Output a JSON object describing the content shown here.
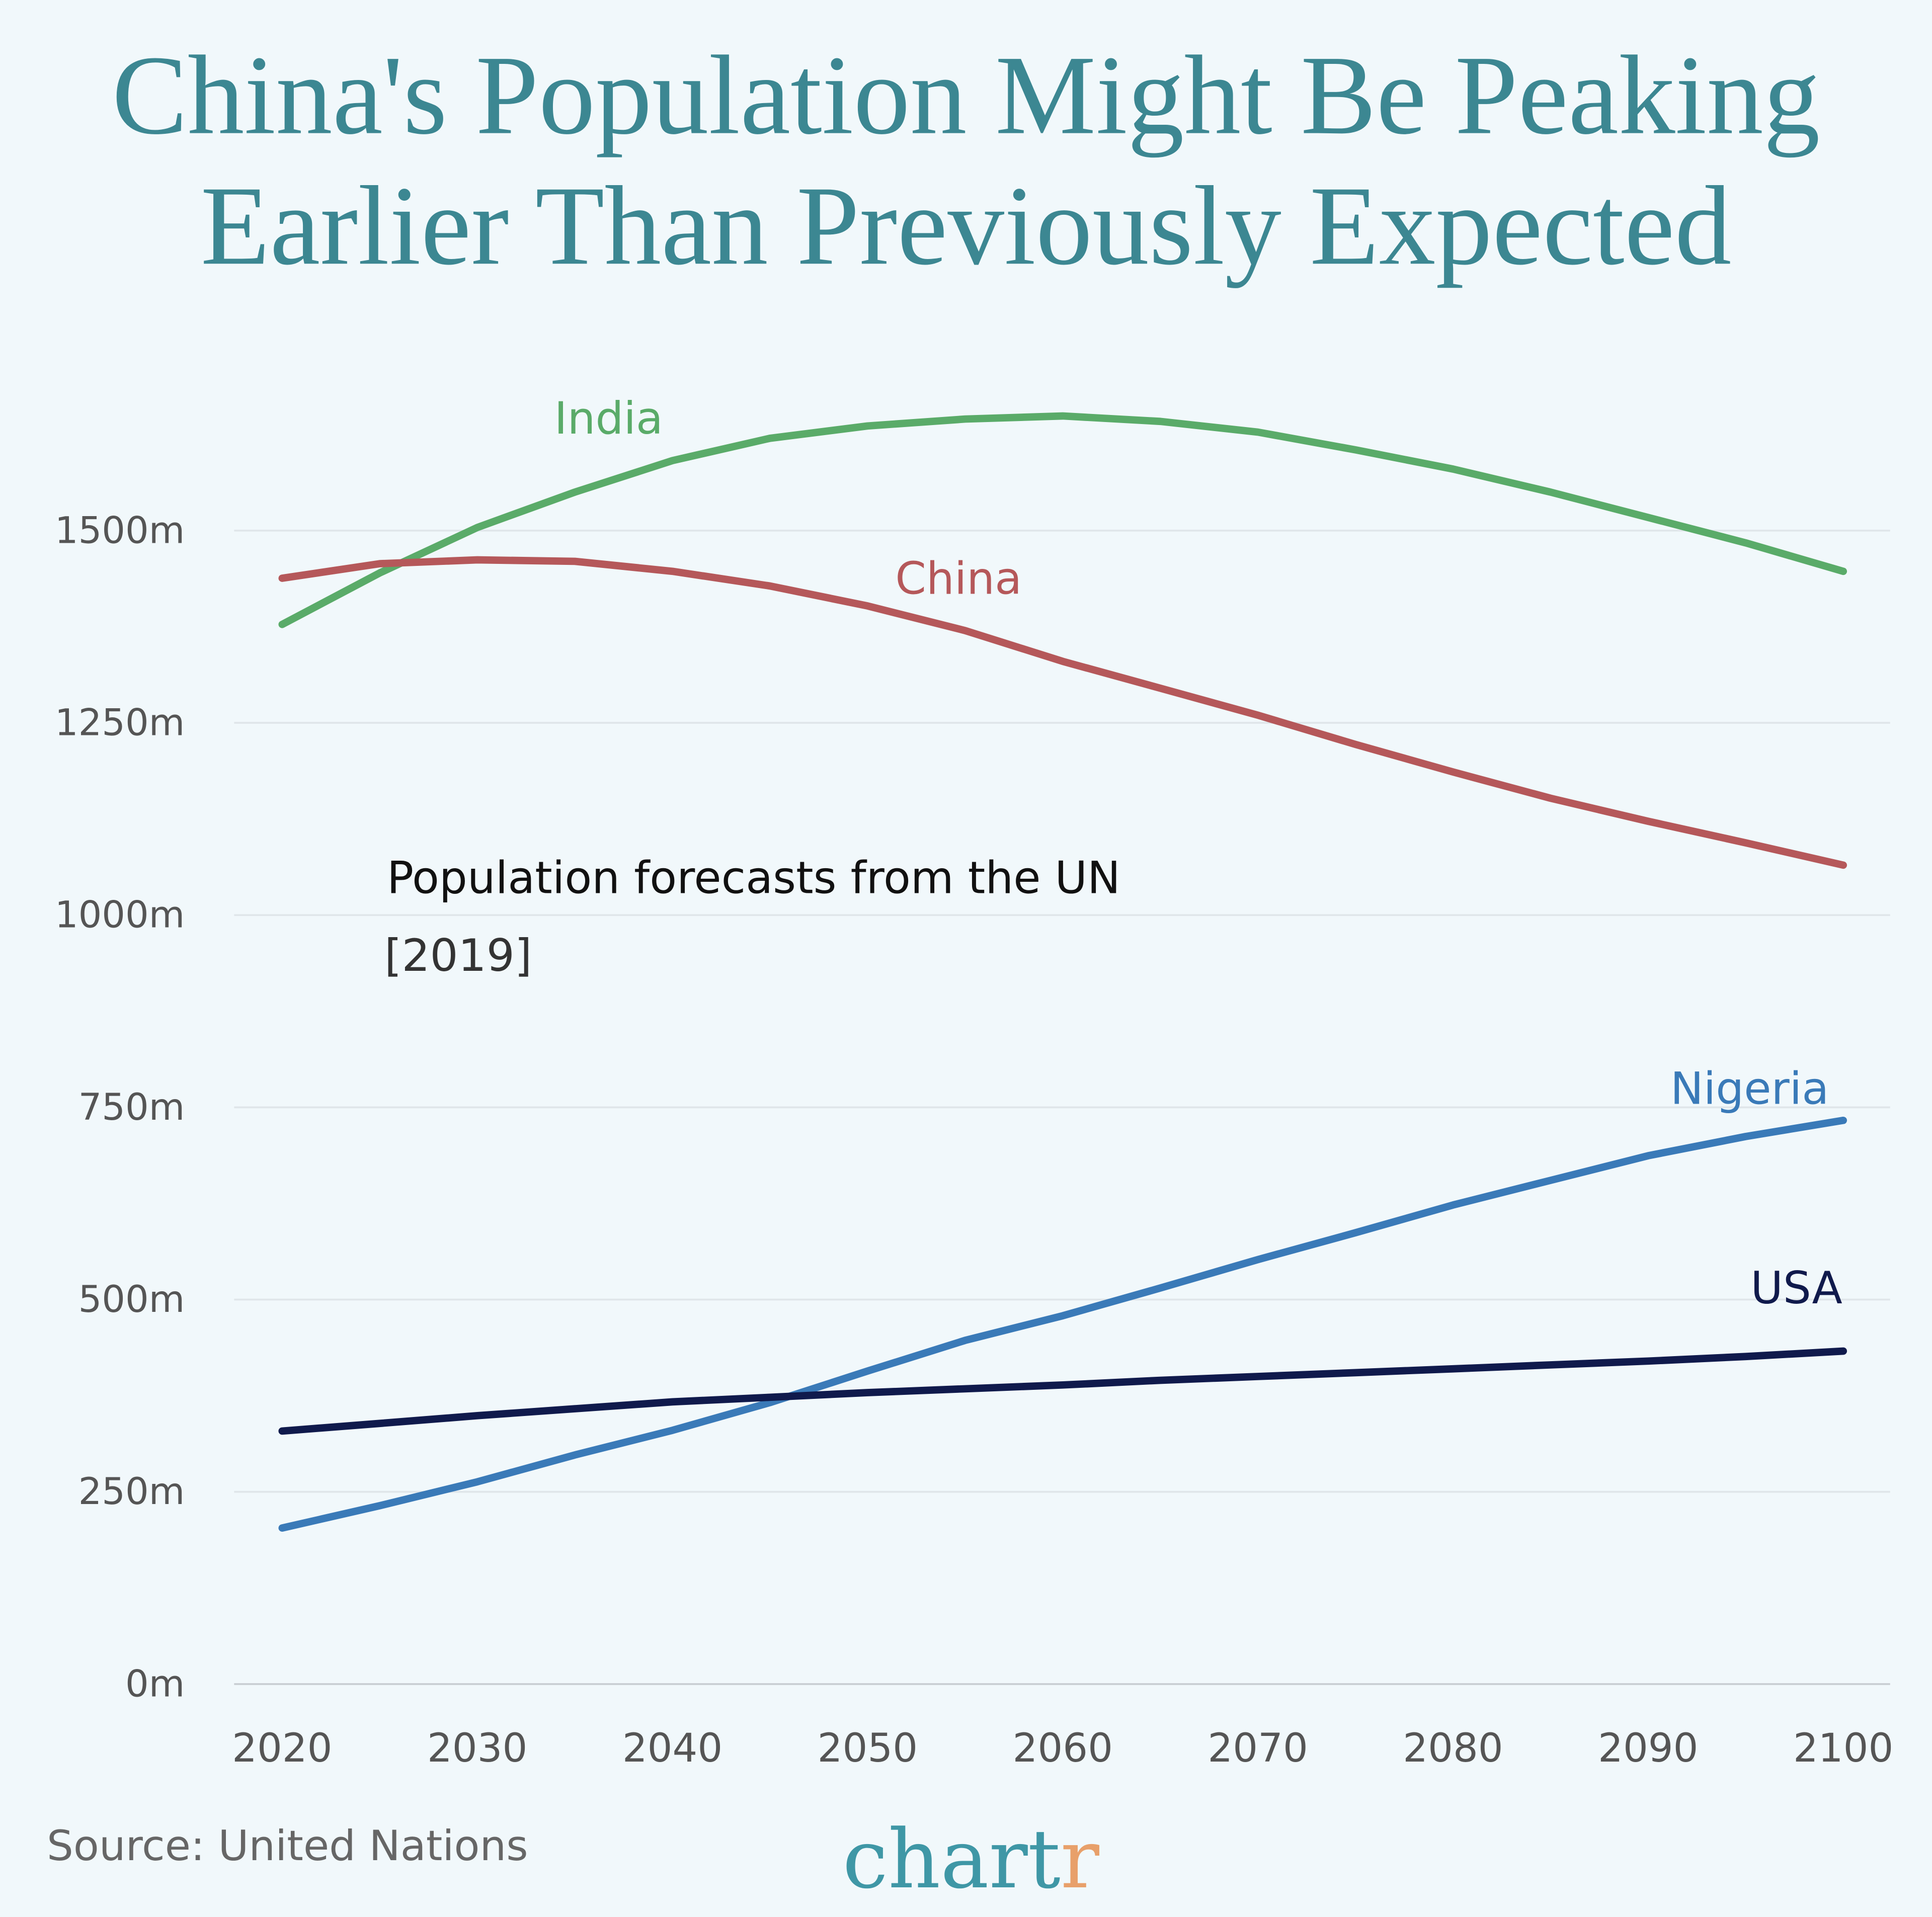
{
  "chart_data": {
    "type": "line",
    "title": [
      "China's Population Might Be Peaking",
      "Earlier Than Previously Expected"
    ],
    "annotation": [
      "Population forecasts from the UN",
      "[2019]"
    ],
    "source": "Source: United Nations",
    "logo": [
      "chart",
      "r"
    ],
    "x": [
      2020,
      2025,
      2030,
      2035,
      2040,
      2045,
      2050,
      2055,
      2060,
      2065,
      2070,
      2075,
      2080,
      2085,
      2090,
      2095,
      2100
    ],
    "xlim": [
      2020,
      2100
    ],
    "xticks": [
      2020,
      2030,
      2040,
      2050,
      2060,
      2070,
      2080,
      2090,
      2100
    ],
    "ylim": [
      0,
      1650
    ],
    "yticks": [
      {
        "value": 0,
        "label": "0m"
      },
      {
        "value": 250,
        "label": "250m"
      },
      {
        "value": 500,
        "label": "500m"
      },
      {
        "value": 750,
        "label": "750m"
      },
      {
        "value": 1000,
        "label": "1000m"
      },
      {
        "value": 1250,
        "label": "1250m"
      },
      {
        "value": 1500,
        "label": "1500m"
      }
    ],
    "grid": true,
    "series": [
      {
        "name": "India",
        "color": "#5aab69",
        "values": [
          1378,
          1445,
          1504,
          1550,
          1591,
          1620,
          1636,
          1645,
          1649,
          1642,
          1628,
          1605,
          1580,
          1550,
          1517,
          1484,
          1447
        ]
      },
      {
        "name": "China",
        "color": "#b5585a",
        "values": [
          1438,
          1457,
          1462,
          1460,
          1447,
          1428,
          1402,
          1370,
          1330,
          1295,
          1260,
          1222,
          1186,
          1152,
          1122,
          1094,
          1065
        ]
      },
      {
        "name": "Nigeria",
        "color": "#3a7ab8",
        "values": [
          203,
          232,
          263,
          298,
          330,
          366,
          407,
          447,
          479,
          515,
          552,
          587,
          623,
          655,
          687,
          712,
          733
        ]
      },
      {
        "name": "USA",
        "color": "#101a4c",
        "values": [
          329,
          339,
          349,
          358,
          367,
          373,
          379,
          384,
          389,
          395,
          400,
          405,
          410,
          415,
          420,
          426,
          433
        ]
      }
    ]
  }
}
